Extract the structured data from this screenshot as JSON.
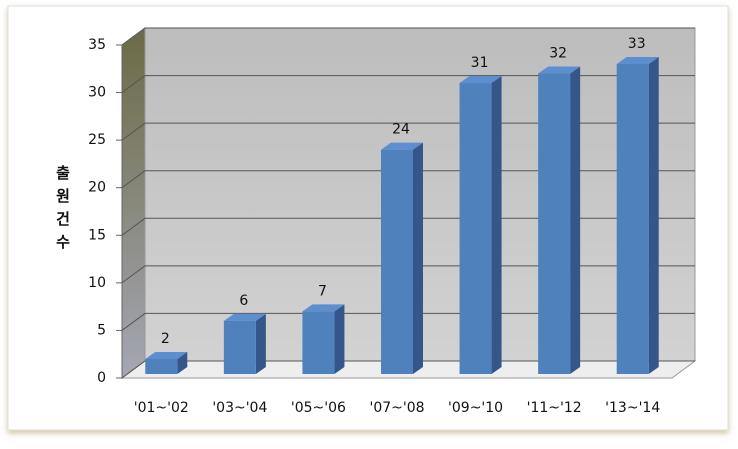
{
  "chart_data": {
    "type": "bar",
    "y_label": "출원건수",
    "categories": [
      "'01~'02",
      "'03~'04",
      "'05~'06",
      "'07~'08",
      "'09~'10",
      "'11~'12",
      "'13~'14"
    ],
    "values": [
      2,
      6,
      7,
      24,
      31,
      32,
      33
    ],
    "color": "#4f81bd",
    "ylim": [
      0,
      35
    ],
    "yticks": [
      0,
      5,
      10,
      15,
      20,
      25,
      30,
      35
    ],
    "grid": true
  }
}
